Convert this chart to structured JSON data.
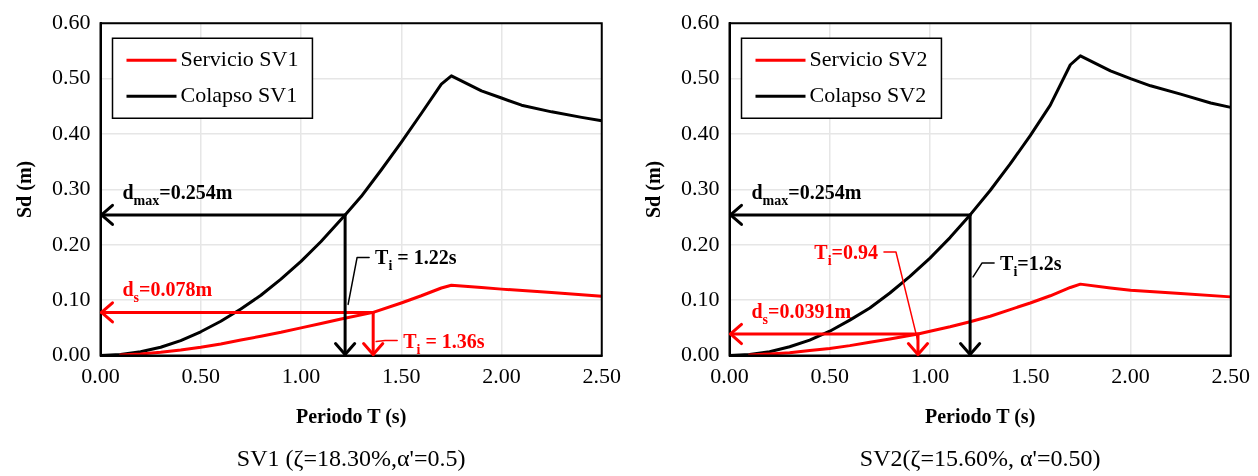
{
  "chart_data": [
    {
      "type": "line",
      "xlabel": "Periodo T (s)",
      "ylabel": "Sd (m)",
      "xlim": [
        0,
        2.5
      ],
      "ylim": [
        0,
        0.6
      ],
      "xticks": [
        {
          "value": 0,
          "label": "0.00"
        },
        {
          "value": 0.5,
          "label": "0.50"
        },
        {
          "value": 1,
          "label": "1.00"
        },
        {
          "value": 1.5,
          "label": "1.50"
        },
        {
          "value": 2,
          "label": "2.00"
        },
        {
          "value": 2.5,
          "label": "2.50"
        }
      ],
      "yticks": [
        {
          "value": 0,
          "label": "0.00"
        },
        {
          "value": 0.1,
          "label": "0.10"
        },
        {
          "value": 0.2,
          "label": "0.20"
        },
        {
          "value": 0.3,
          "label": "0.30"
        },
        {
          "value": 0.4,
          "label": "0.40"
        },
        {
          "value": 0.5,
          "label": "0.50"
        },
        {
          "value": 0.6,
          "label": "0.60"
        }
      ],
      "grid": true,
      "legend": "top left",
      "series": [
        {
          "name": "Servicio SV1",
          "color": "#ff0000",
          "x": [
            0.1,
            0.2,
            0.3,
            0.4,
            0.5,
            0.6,
            0.7,
            0.8,
            0.9,
            1.0,
            1.1,
            1.2,
            1.36,
            1.5,
            1.6,
            1.7,
            1.75,
            1.9,
            2.0,
            2.25,
            2.5
          ],
          "values": [
            0.001,
            0.003,
            0.006,
            0.01,
            0.015,
            0.021,
            0.028,
            0.035,
            0.042,
            0.05,
            0.058,
            0.066,
            0.078,
            0.095,
            0.108,
            0.122,
            0.127,
            0.123,
            0.12,
            0.114,
            0.107
          ]
        },
        {
          "name": "Colapso SV1",
          "color": "#000000",
          "x": [
            0,
            0.1,
            0.2,
            0.3,
            0.4,
            0.5,
            0.6,
            0.7,
            0.8,
            0.9,
            1.0,
            1.1,
            1.22,
            1.3,
            1.4,
            1.5,
            1.6,
            1.7,
            1.75,
            1.9,
            2.0,
            2.1,
            2.25,
            2.4,
            2.5
          ],
          "values": [
            0,
            0.002,
            0.007,
            0.015,
            0.027,
            0.043,
            0.062,
            0.084,
            0.109,
            0.138,
            0.17,
            0.206,
            0.254,
            0.287,
            0.335,
            0.385,
            0.437,
            0.49,
            0.505,
            0.478,
            0.465,
            0.452,
            0.44,
            0.43,
            0.424
          ]
        }
      ],
      "annotations": [
        {
          "text": "d$_{s}$=0.078m",
          "x": 1.36,
          "y": 0.078
        },
        {
          "text": "T$_{i}$ = 1.36s",
          "x": 1.36,
          "y": 0.078
        },
        {
          "text": "d$_{max}$=0.254m",
          "x": 1.22,
          "y": 0.254
        },
        {
          "text": "T$_{i}$ = 1.22s",
          "x": 1.22,
          "y": 0.254
        },
        "SV1 (ζ=18.30%,α'=0.5)"
      ]
    },
    {
      "type": "line",
      "xlabel": "Periodo T (s)",
      "ylabel": "Sd (m)",
      "xlim": [
        0,
        2.5
      ],
      "ylim": [
        0,
        0.6
      ],
      "xticks": [
        {
          "value": 0,
          "label": "0.00"
        },
        {
          "value": 0.5,
          "label": "0.50"
        },
        {
          "value": 1,
          "label": "1.00"
        },
        {
          "value": 1.5,
          "label": "1.50"
        },
        {
          "value": 2,
          "label": "2.00"
        },
        {
          "value": 2.5,
          "label": "2.50"
        }
      ],
      "yticks": [
        {
          "value": 0,
          "label": "0.00"
        },
        {
          "value": 0.1,
          "label": "0.10"
        },
        {
          "value": 0.2,
          "label": "0.20"
        },
        {
          "value": 0.3,
          "label": "0.30"
        },
        {
          "value": 0.4,
          "label": "0.40"
        },
        {
          "value": 0.5,
          "label": "0.50"
        },
        {
          "value": 0.6,
          "label": "0.60"
        }
      ],
      "grid": true,
      "legend": "top left",
      "series": [
        {
          "name": "Servicio SV2",
          "color": "#ff0000",
          "x": [
            0.1,
            0.2,
            0.3,
            0.4,
            0.5,
            0.6,
            0.7,
            0.8,
            0.94,
            1.0,
            1.1,
            1.2,
            1.3,
            1.4,
            1.5,
            1.6,
            1.7,
            1.75,
            1.9,
            2.0,
            2.25,
            2.5
          ],
          "values": [
            0.001,
            0.003,
            0.005,
            0.009,
            0.013,
            0.018,
            0.024,
            0.03,
            0.039,
            0.044,
            0.052,
            0.061,
            0.071,
            0.083,
            0.095,
            0.108,
            0.123,
            0.129,
            0.122,
            0.118,
            0.112,
            0.106
          ]
        },
        {
          "name": "Colapso SV2",
          "color": "#000000",
          "x": [
            0,
            0.1,
            0.2,
            0.3,
            0.4,
            0.5,
            0.6,
            0.7,
            0.8,
            0.9,
            1.0,
            1.1,
            1.2,
            1.3,
            1.4,
            1.5,
            1.6,
            1.7,
            1.75,
            1.9,
            2.0,
            2.1,
            2.25,
            2.4,
            2.5
          ],
          "values": [
            0,
            0.002,
            0.007,
            0.016,
            0.028,
            0.044,
            0.064,
            0.086,
            0.113,
            0.143,
            0.176,
            0.213,
            0.254,
            0.298,
            0.346,
            0.397,
            0.452,
            0.525,
            0.541,
            0.514,
            0.5,
            0.487,
            0.472,
            0.456,
            0.448
          ]
        }
      ],
      "annotations": [
        {
          "text": "d$_{s}$=0.0391m",
          "x": 0.94,
          "y": 0.039
        },
        {
          "text": "T$_{i}$=0.94",
          "x": 0.94,
          "y": 0.039
        },
        {
          "text": "d$_{max}$=0.254m",
          "x": 1.2,
          "y": 0.254
        },
        {
          "text": "T$_{i}$=1.2s",
          "x": 1.2,
          "y": 0.254
        },
        "SV2(ζ=15.60%, α'=0.50)"
      ]
    }
  ]
}
